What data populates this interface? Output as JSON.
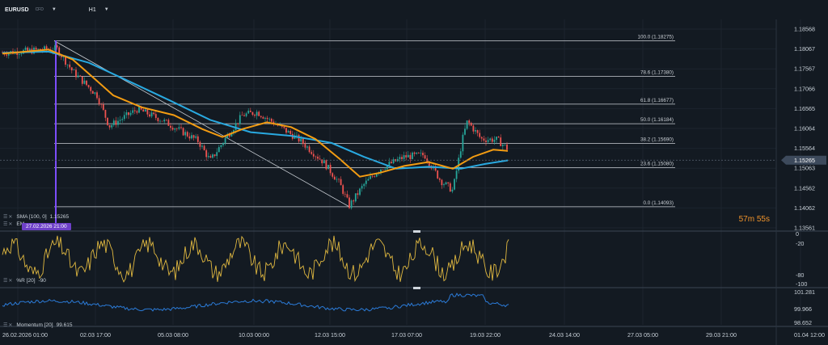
{
  "header": {
    "symbol": "EURUSD",
    "symbol_suffix": "CFD",
    "timeframe": "H1"
  },
  "price_axis": {
    "ticks": [
      "1.18568",
      "1.18067",
      "1.17567",
      "1.17066",
      "1.16565",
      "1.16064",
      "1.15564",
      "1.15063",
      "1.14562",
      "1.14062",
      "1.13561"
    ],
    "current_price": "1.15265",
    "countdown_min": "57",
    "countdown_min_unit": "m",
    "countdown_sec": "55",
    "countdown_sec_unit": "s"
  },
  "fib_levels": [
    {
      "label": "100.0 (1.18275)",
      "value": 1.18275
    },
    {
      "label": "78.6 (1.17380)",
      "value": 1.1738
    },
    {
      "label": "61.8 (1.16677)",
      "value": 1.16677
    },
    {
      "label": "50.0 (1.16184)",
      "value": 1.16184
    },
    {
      "label": "38.2 (1.15690)",
      "value": 1.1569
    },
    {
      "label": "23.6 (1.15080)",
      "value": 1.1508
    },
    {
      "label": "0.0 (1.14093)",
      "value": 1.14093
    }
  ],
  "indicators": {
    "sma": "SMA [100, 0]",
    "sma_value": "1.15265",
    "ema": "EM",
    "wr": "%R [20]",
    "wr_value": "-90",
    "momentum": "Momentum [20]",
    "momentum_value": "99.615"
  },
  "cursor_date": "27.02.2026 21:00",
  "wr_axis": [
    "0",
    "-20",
    "-80",
    "-100"
  ],
  "momentum_axis": [
    "101.281",
    "99.966",
    "98.652"
  ],
  "time_axis": [
    "26.02.2026 01:00",
    "02.03 17:00",
    "05.03 08:00",
    "10.03 00:00",
    "12.03 15:00",
    "17.03 07:00",
    "19.03 22:00",
    "24.03 14:00",
    "27.03 05:00",
    "29.03 21:00",
    "01.04 12:00"
  ],
  "colors": {
    "background": "#131a22",
    "bull": "#26a69a",
    "bear": "#ef5350",
    "ema": "#f39c12",
    "sma": "#29a9e0",
    "wr": "#e0b840",
    "momentum": "#2b7bd8",
    "cursor": "#7c4dff"
  }
}
